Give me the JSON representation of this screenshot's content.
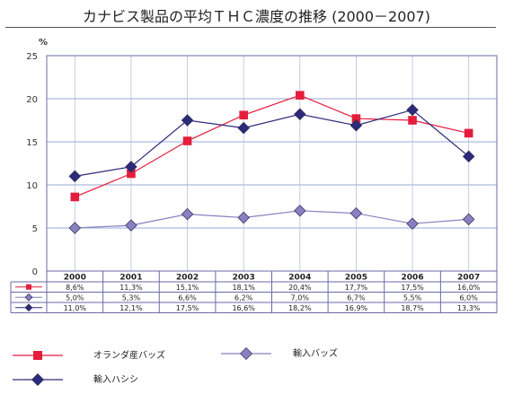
{
  "title": "カナビス製品の平均ＴＨＣ濃度の推移 (2000－2007)",
  "chart_data": {
    "type": "line",
    "title": "カナビス製品の平均ＴＨＣ濃度の推移 (2000－2007)",
    "unit": "%",
    "ylim": [
      0,
      25
    ],
    "yticks": [
      "0",
      "5",
      "10",
      "15",
      "20",
      "25"
    ],
    "grid": true,
    "legend_position": "bottom",
    "categories": [
      "2000",
      "2001",
      "2002",
      "2003",
      "2004",
      "2005",
      "2006",
      "2007"
    ],
    "series": [
      {
        "name": "オランダ産バッズ",
        "marker": "square",
        "color": "#e31e3c",
        "values": [
          8.6,
          11.3,
          15.1,
          18.1,
          20.4,
          17.7,
          17.5,
          16.0
        ],
        "labels": [
          "8,6%",
          "11,3%",
          "15,1%",
          "18,1%",
          "20,4%",
          "17,7%",
          "17,5%",
          "16,0%"
        ]
      },
      {
        "name": "輸入バッズ",
        "marker": "diamond",
        "color": "#8a80c0",
        "values": [
          5.0,
          5.3,
          6.6,
          6.2,
          7.0,
          6.7,
          5.5,
          6.0
        ],
        "labels": [
          "5,0%",
          "5,3%",
          "6,6%",
          "6,2%",
          "7,0%",
          "6,7%",
          "5,5%",
          "6,0%"
        ]
      },
      {
        "name": "輸入ハシシ",
        "marker": "diamond",
        "color": "#2e2a7a",
        "values": [
          11.0,
          12.1,
          17.5,
          16.6,
          18.2,
          16.9,
          18.7,
          13.3
        ],
        "labels": [
          "11,0%",
          "12,1%",
          "17,5%",
          "16,6%",
          "18,2%",
          "16,9%",
          "18,7%",
          "13,3%"
        ]
      }
    ]
  }
}
